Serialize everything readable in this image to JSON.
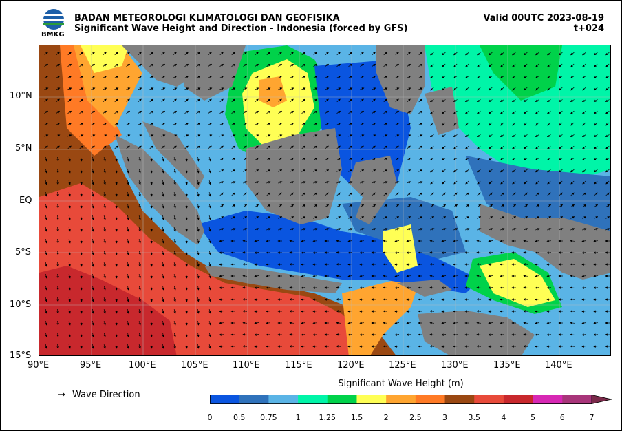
{
  "header": {
    "org": "BADAN METEOROLOGI KLIMATOLOGI DAN GEOFISIKA",
    "product": "Significant Wave Height and Direction - Indonesia (forced by GFS)",
    "valid": "Valid 00UTC 2023-08-19",
    "lead": "t+024",
    "logo_text": "BMKG"
  },
  "axes": {
    "lat_labels": [
      "10°N",
      "5°N",
      "EQ",
      "5°S",
      "10°S",
      "15°S"
    ],
    "lon_labels": [
      "90°E",
      "95°E",
      "100°E",
      "105°E",
      "110°E",
      "115°E",
      "120°E",
      "125°E",
      "130°E",
      "135°E",
      "140°E"
    ],
    "lat_range": [
      -15,
      15
    ],
    "lon_range": [
      90,
      145
    ]
  },
  "legend": {
    "arrow_symbol": "→",
    "arrow_label": "Wave Direction",
    "colorbar_title": "Significant Wave Height (m)",
    "colorbar_ticks": [
      "0",
      "0.5",
      "0.75",
      "1",
      "1.25",
      "1.5",
      "2",
      "2.5",
      "3",
      "3.5",
      "4",
      "5",
      "6",
      "7"
    ],
    "colorbar_colors": [
      "#0a55e0",
      "#2f72bb",
      "#5ab4e6",
      "#00f5a8",
      "#00d24a",
      "#ffff55",
      "#ffa530",
      "#ff7a25",
      "#9a4812",
      "#e84a3a",
      "#c8282d",
      "#d728b4",
      "#a8357a"
    ]
  },
  "colors": {
    "land": "#808080",
    "deep_calm": "#0a55e0",
    "moderate": "#5ab4e6",
    "high": "#e84a3a"
  }
}
